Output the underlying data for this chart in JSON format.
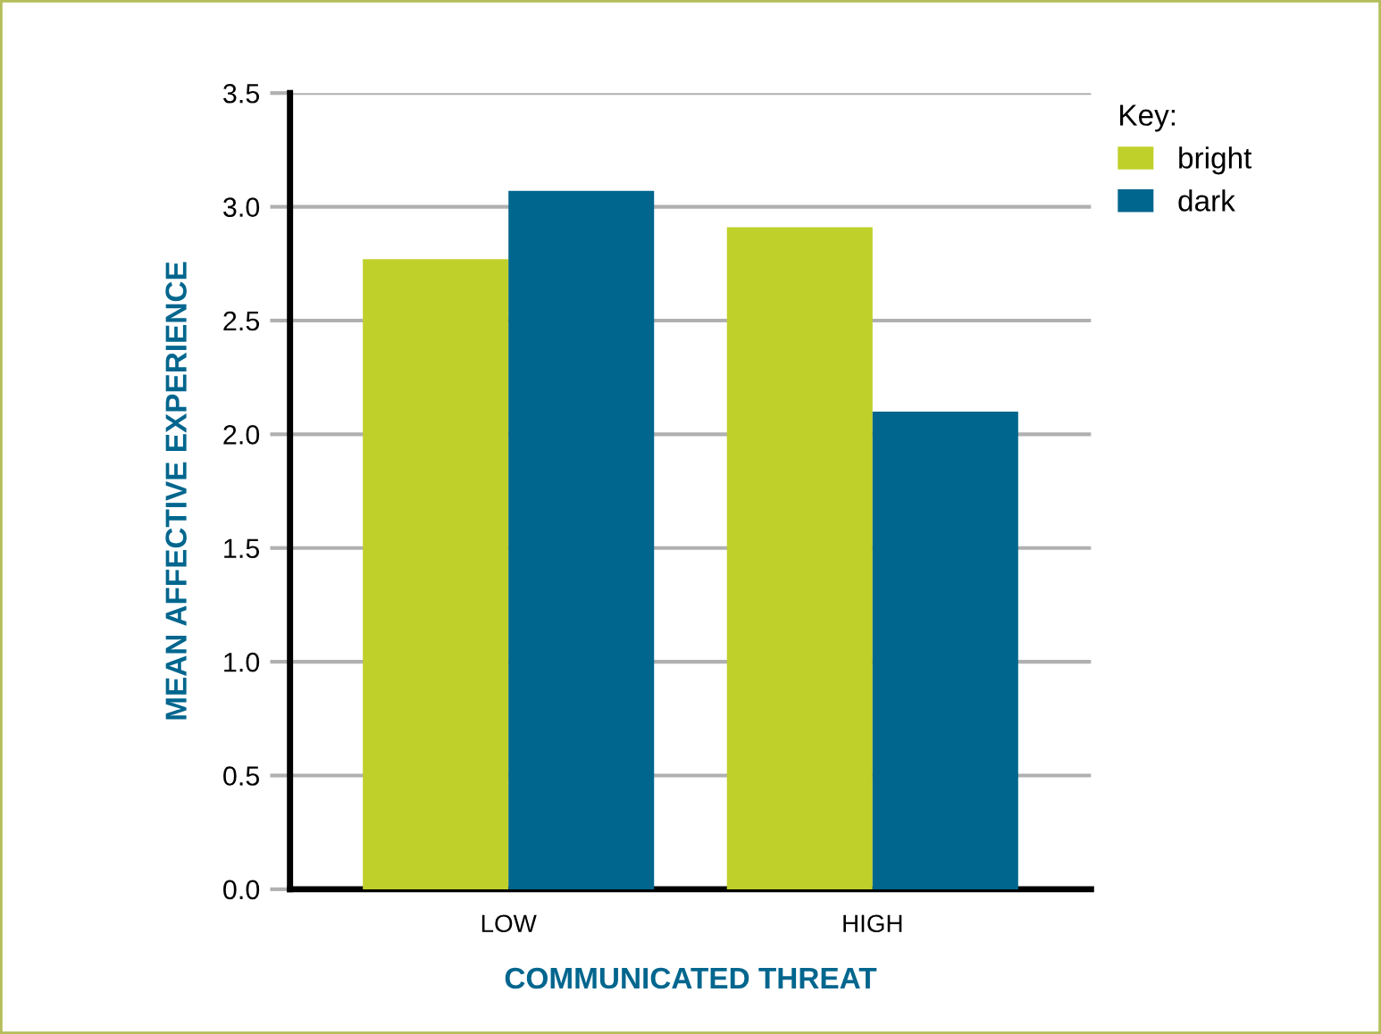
{
  "chart_data": {
    "type": "bar",
    "xlabel": "COMMUNICATED THREAT",
    "ylabel": "MEAN AFFECTIVE EXPERIENCE",
    "legend_title": "Key:",
    "categories": [
      "LOW",
      "HIGH"
    ],
    "series": [
      {
        "name": "bright",
        "color": "#c0d02a",
        "values": [
          2.77,
          2.91
        ]
      },
      {
        "name": "dark",
        "color": "#00668e",
        "values": [
          3.07,
          2.1
        ]
      }
    ],
    "ylim": [
      0,
      3.5
    ],
    "yticks": [
      {
        "value": 0,
        "label": "0.0"
      },
      0.5,
      {
        "value": 1,
        "label": "1.0"
      },
      1.5,
      {
        "value": 2,
        "label": "2.0"
      },
      2.5,
      {
        "value": 3,
        "label": "3.0"
      },
      3.5
    ],
    "grid": "y",
    "legend": "top right"
  }
}
